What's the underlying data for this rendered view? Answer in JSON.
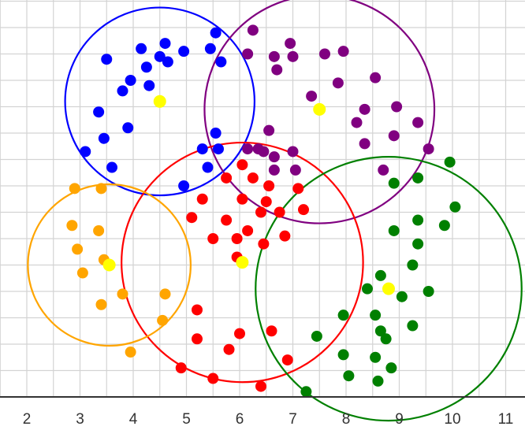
{
  "chart_data": {
    "type": "scatter",
    "title": "",
    "xlabel": "",
    "ylabel": "",
    "xlim": [
      1.5,
      11.3
    ],
    "ylim": [
      -0.3,
      7.6
    ],
    "x_ticks": [
      2,
      3,
      4,
      5,
      6,
      7,
      8,
      9,
      10,
      11
    ],
    "x_tick_labels": [
      "2",
      "3",
      "4",
      "5",
      "6",
      "7",
      "8",
      "9",
      "10",
      "11"
    ],
    "grid": true,
    "grid_step": 0.5,
    "colors": {
      "grid": "#d3d3d3",
      "axis": "#333333",
      "centroid": "#ffff00"
    },
    "clusters": [
      {
        "color": "#0000ff",
        "centroid": [
          4.5,
          5.6
        ],
        "radius": 1.78,
        "points": [
          [
            4.6,
            6.7
          ],
          [
            4.15,
            6.6
          ],
          [
            3.5,
            6.4
          ],
          [
            4.25,
            6.25
          ],
          [
            4.5,
            6.45
          ],
          [
            4.65,
            6.35
          ],
          [
            4.95,
            6.55
          ],
          [
            3.95,
            6.0
          ],
          [
            3.8,
            5.8
          ],
          [
            4.3,
            5.9
          ],
          [
            3.35,
            5.4
          ],
          [
            3.9,
            5.1
          ],
          [
            3.45,
            4.9
          ],
          [
            3.1,
            4.65
          ],
          [
            3.6,
            4.35
          ],
          [
            5.55,
            6.9
          ],
          [
            5.45,
            6.6
          ],
          [
            5.65,
            6.35
          ],
          [
            5.55,
            5.0
          ],
          [
            5.6,
            4.7
          ],
          [
            5.3,
            4.7
          ],
          [
            5.4,
            4.35
          ],
          [
            4.95,
            4.0
          ]
        ]
      },
      {
        "color": "#800080",
        "centroid": [
          7.5,
          5.45
        ],
        "radius": 2.16,
        "points": [
          [
            6.25,
            6.95
          ],
          [
            6.95,
            6.7
          ],
          [
            6.65,
            6.45
          ],
          [
            7.0,
            6.45
          ],
          [
            7.6,
            6.5
          ],
          [
            7.95,
            6.55
          ],
          [
            6.15,
            6.5
          ],
          [
            6.7,
            6.2
          ],
          [
            7.85,
            5.95
          ],
          [
            8.55,
            6.05
          ],
          [
            7.35,
            5.7
          ],
          [
            8.35,
            5.45
          ],
          [
            8.95,
            5.5
          ],
          [
            8.2,
            5.2
          ],
          [
            9.35,
            5.2
          ],
          [
            6.55,
            5.05
          ],
          [
            8.9,
            4.95
          ],
          [
            8.35,
            4.8
          ],
          [
            6.45,
            4.65
          ],
          [
            6.65,
            4.55
          ],
          [
            7.0,
            4.65
          ],
          [
            9.55,
            4.7
          ],
          [
            6.15,
            4.7
          ],
          [
            6.35,
            4.7
          ],
          [
            6.65,
            4.3
          ],
          [
            7.05,
            4.3
          ],
          [
            8.7,
            4.3
          ]
        ]
      },
      {
        "color": "#ff0000",
        "centroid": [
          6.05,
          2.55
        ],
        "radius": 2.27,
        "points": [
          [
            6.05,
            4.4
          ],
          [
            5.75,
            4.15
          ],
          [
            6.25,
            4.15
          ],
          [
            6.55,
            4.0
          ],
          [
            7.1,
            3.95
          ],
          [
            5.3,
            3.75
          ],
          [
            6.05,
            3.75
          ],
          [
            6.5,
            3.7
          ],
          [
            7.2,
            3.55
          ],
          [
            5.1,
            3.4
          ],
          [
            5.75,
            3.35
          ],
          [
            6.4,
            3.5
          ],
          [
            6.75,
            3.5
          ],
          [
            6.15,
            3.15
          ],
          [
            5.5,
            3.0
          ],
          [
            5.95,
            3.0
          ],
          [
            6.45,
            2.9
          ],
          [
            6.85,
            3.05
          ],
          [
            5.95,
            2.65
          ],
          [
            5.2,
            1.65
          ],
          [
            5.2,
            1.1
          ],
          [
            6.0,
            1.2
          ],
          [
            6.6,
            1.25
          ],
          [
            5.8,
            0.9
          ],
          [
            6.9,
            0.7
          ],
          [
            4.9,
            0.55
          ],
          [
            5.5,
            0.35
          ],
          [
            6.4,
            0.2
          ]
        ]
      },
      {
        "color": "#ffa500",
        "centroid": [
          3.55,
          2.5
        ],
        "radius": 1.53,
        "points": [
          [
            2.9,
            3.95
          ],
          [
            3.4,
            3.95
          ],
          [
            2.85,
            3.25
          ],
          [
            3.35,
            3.15
          ],
          [
            2.95,
            2.8
          ],
          [
            3.45,
            2.6
          ],
          [
            3.05,
            2.35
          ],
          [
            3.8,
            1.95
          ],
          [
            4.6,
            1.95
          ],
          [
            3.4,
            1.75
          ],
          [
            4.55,
            1.45
          ],
          [
            3.95,
            0.85
          ]
        ]
      },
      {
        "color": "#008000",
        "centroid": [
          8.8,
          2.05
        ],
        "radius": 2.5,
        "points": [
          [
            9.95,
            4.45
          ],
          [
            8.9,
            4.05
          ],
          [
            9.35,
            4.15
          ],
          [
            10.05,
            3.6
          ],
          [
            9.35,
            3.35
          ],
          [
            8.9,
            3.15
          ],
          [
            9.85,
            3.25
          ],
          [
            9.35,
            2.9
          ],
          [
            9.25,
            2.5
          ],
          [
            8.65,
            2.3
          ],
          [
            8.4,
            2.05
          ],
          [
            9.55,
            2.0
          ],
          [
            9.05,
            1.9
          ],
          [
            8.55,
            1.55
          ],
          [
            7.95,
            1.55
          ],
          [
            8.65,
            1.25
          ],
          [
            9.25,
            1.35
          ],
          [
            7.45,
            1.15
          ],
          [
            8.75,
            1.1
          ],
          [
            7.95,
            0.8
          ],
          [
            8.55,
            0.75
          ],
          [
            8.85,
            0.55
          ],
          [
            8.05,
            0.4
          ],
          [
            8.6,
            0.3
          ],
          [
            7.25,
            0.1
          ]
        ]
      }
    ]
  }
}
